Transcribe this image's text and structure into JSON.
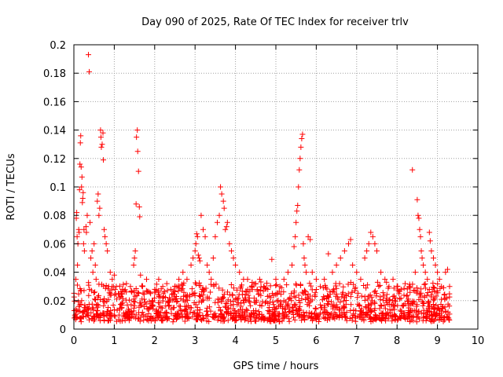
{
  "chart_data": {
    "type": "scatter",
    "title": "Day 090 of 2025, Rate Of TEC Index for receiver trlv",
    "xlabel": "GPS time / hours",
    "ylabel": "ROTI / TECUs",
    "xlim": [
      0,
      10
    ],
    "ylim": [
      0,
      0.2
    ],
    "x_ticks": [
      0,
      1,
      2,
      3,
      4,
      5,
      6,
      7,
      8,
      9,
      10
    ],
    "y_ticks": [
      0,
      0.02,
      0.04,
      0.06,
      0.08,
      0.1,
      0.12,
      0.14,
      0.16,
      0.18,
      0.2
    ],
    "x_tick_labels": [
      "0",
      "1",
      "2",
      "3",
      "4",
      "5",
      "6",
      "7",
      "8",
      "9",
      "10"
    ],
    "y_tick_labels": [
      "0",
      "0.02",
      "0.04",
      "0.06",
      "0.08",
      "0.1",
      "0.12",
      "0.14",
      "0.16",
      "0.18",
      "0.2"
    ],
    "grid": true,
    "marker": "+",
    "color": "#ff0000",
    "series_name": "ROTI",
    "background_band": {
      "x_range": [
        0,
        9.3
      ],
      "y_range": [
        0.005,
        0.03
      ]
    },
    "points": [
      [
        0.05,
        0.035
      ],
      [
        0.06,
        0.078
      ],
      [
        0.07,
        0.082
      ],
      [
        0.08,
        0.065
      ],
      [
        0.09,
        0.045
      ],
      [
        0.1,
        0.06
      ],
      [
        0.12,
        0.07
      ],
      [
        0.13,
        0.068
      ],
      [
        0.14,
        0.098
      ],
      [
        0.15,
        0.116
      ],
      [
        0.16,
        0.131
      ],
      [
        0.17,
        0.136
      ],
      [
        0.18,
        0.114
      ],
      [
        0.19,
        0.1
      ],
      [
        0.2,
        0.107
      ],
      [
        0.21,
        0.089
      ],
      [
        0.22,
        0.092
      ],
      [
        0.23,
        0.096
      ],
      [
        0.24,
        0.06
      ],
      [
        0.25,
        0.07
      ],
      [
        0.26,
        0.055
      ],
      [
        0.3,
        0.072
      ],
      [
        0.31,
        0.068
      ],
      [
        0.33,
        0.08
      ],
      [
        0.36,
        0.193
      ],
      [
        0.38,
        0.181
      ],
      [
        0.4,
        0.075
      ],
      [
        0.42,
        0.05
      ],
      [
        0.45,
        0.055
      ],
      [
        0.47,
        0.04
      ],
      [
        0.5,
        0.06
      ],
      [
        0.53,
        0.045
      ],
      [
        0.55,
        0.035
      ],
      [
        0.58,
        0.09
      ],
      [
        0.6,
        0.095
      ],
      [
        0.62,
        0.08
      ],
      [
        0.64,
        0.085
      ],
      [
        0.66,
        0.14
      ],
      [
        0.67,
        0.135
      ],
      [
        0.68,
        0.128
      ],
      [
        0.7,
        0.13
      ],
      [
        0.72,
        0.138
      ],
      [
        0.73,
        0.119
      ],
      [
        0.75,
        0.07
      ],
      [
        0.77,
        0.065
      ],
      [
        0.8,
        0.06
      ],
      [
        0.83,
        0.055
      ],
      [
        0.86,
        0.03
      ],
      [
        0.9,
        0.04
      ],
      [
        0.95,
        0.035
      ],
      [
        1.0,
        0.038
      ],
      [
        1.05,
        0.03
      ],
      [
        1.1,
        0.025
      ],
      [
        1.2,
        0.028
      ],
      [
        1.3,
        0.032
      ],
      [
        1.4,
        0.03
      ],
      [
        1.48,
        0.045
      ],
      [
        1.5,
        0.05
      ],
      [
        1.52,
        0.055
      ],
      [
        1.54,
        0.088
      ],
      [
        1.55,
        0.135
      ],
      [
        1.57,
        0.14
      ],
      [
        1.58,
        0.125
      ],
      [
        1.6,
        0.111
      ],
      [
        1.62,
        0.086
      ],
      [
        1.63,
        0.079
      ],
      [
        1.65,
        0.038
      ],
      [
        1.7,
        0.03
      ],
      [
        1.8,
        0.035
      ],
      [
        1.9,
        0.025
      ],
      [
        2.0,
        0.028
      ],
      [
        2.1,
        0.035
      ],
      [
        2.2,
        0.03
      ],
      [
        2.3,
        0.032
      ],
      [
        2.4,
        0.028
      ],
      [
        2.5,
        0.03
      ],
      [
        2.6,
        0.035
      ],
      [
        2.7,
        0.04
      ],
      [
        2.8,
        0.035
      ],
      [
        2.9,
        0.045
      ],
      [
        2.95,
        0.05
      ],
      [
        3.0,
        0.055
      ],
      [
        3.02,
        0.06
      ],
      [
        3.04,
        0.067
      ],
      [
        3.06,
        0.065
      ],
      [
        3.08,
        0.052
      ],
      [
        3.1,
        0.05
      ],
      [
        3.12,
        0.048
      ],
      [
        3.15,
        0.08
      ],
      [
        3.2,
        0.07
      ],
      [
        3.25,
        0.065
      ],
      [
        3.3,
        0.045
      ],
      [
        3.35,
        0.04
      ],
      [
        3.4,
        0.035
      ],
      [
        3.45,
        0.05
      ],
      [
        3.5,
        0.065
      ],
      [
        3.55,
        0.075
      ],
      [
        3.6,
        0.08
      ],
      [
        3.63,
        0.1
      ],
      [
        3.66,
        0.095
      ],
      [
        3.7,
        0.09
      ],
      [
        3.72,
        0.085
      ],
      [
        3.75,
        0.07
      ],
      [
        3.78,
        0.072
      ],
      [
        3.8,
        0.075
      ],
      [
        3.85,
        0.06
      ],
      [
        3.9,
        0.055
      ],
      [
        3.95,
        0.05
      ],
      [
        4.0,
        0.045
      ],
      [
        4.1,
        0.04
      ],
      [
        4.2,
        0.035
      ],
      [
        4.3,
        0.035
      ],
      [
        4.4,
        0.03
      ],
      [
        4.5,
        0.032
      ],
      [
        4.6,
        0.035
      ],
      [
        4.7,
        0.03
      ],
      [
        4.8,
        0.028
      ],
      [
        4.9,
        0.049
      ],
      [
        5.0,
        0.035
      ],
      [
        5.1,
        0.03
      ],
      [
        5.2,
        0.035
      ],
      [
        5.3,
        0.04
      ],
      [
        5.4,
        0.045
      ],
      [
        5.45,
        0.058
      ],
      [
        5.48,
        0.065
      ],
      [
        5.5,
        0.075
      ],
      [
        5.52,
        0.083
      ],
      [
        5.54,
        0.087
      ],
      [
        5.56,
        0.1
      ],
      [
        5.58,
        0.112
      ],
      [
        5.6,
        0.12
      ],
      [
        5.62,
        0.128
      ],
      [
        5.64,
        0.134
      ],
      [
        5.66,
        0.137
      ],
      [
        5.68,
        0.06
      ],
      [
        5.7,
        0.05
      ],
      [
        5.72,
        0.045
      ],
      [
        5.75,
        0.04
      ],
      [
        5.8,
        0.065
      ],
      [
        5.85,
        0.063
      ],
      [
        5.9,
        0.04
      ],
      [
        6.0,
        0.035
      ],
      [
        6.1,
        0.03
      ],
      [
        6.2,
        0.035
      ],
      [
        6.3,
        0.053
      ],
      [
        6.4,
        0.04
      ],
      [
        6.5,
        0.045
      ],
      [
        6.6,
        0.05
      ],
      [
        6.7,
        0.055
      ],
      [
        6.8,
        0.06
      ],
      [
        6.85,
        0.063
      ],
      [
        6.9,
        0.045
      ],
      [
        7.0,
        0.04
      ],
      [
        7.1,
        0.035
      ],
      [
        7.2,
        0.05
      ],
      [
        7.25,
        0.055
      ],
      [
        7.3,
        0.06
      ],
      [
        7.35,
        0.068
      ],
      [
        7.4,
        0.065
      ],
      [
        7.45,
        0.06
      ],
      [
        7.5,
        0.055
      ],
      [
        7.6,
        0.04
      ],
      [
        7.7,
        0.035
      ],
      [
        7.8,
        0.03
      ],
      [
        7.9,
        0.035
      ],
      [
        8.0,
        0.03
      ],
      [
        8.1,
        0.028
      ],
      [
        8.2,
        0.032
      ],
      [
        8.3,
        0.03
      ],
      [
        8.38,
        0.112
      ],
      [
        8.45,
        0.04
      ],
      [
        8.5,
        0.091
      ],
      [
        8.52,
        0.08
      ],
      [
        8.54,
        0.078
      ],
      [
        8.56,
        0.07
      ],
      [
        8.58,
        0.065
      ],
      [
        8.6,
        0.055
      ],
      [
        8.62,
        0.05
      ],
      [
        8.65,
        0.045
      ],
      [
        8.7,
        0.04
      ],
      [
        8.75,
        0.035
      ],
      [
        8.8,
        0.068
      ],
      [
        8.82,
        0.062
      ],
      [
        8.85,
        0.055
      ],
      [
        8.9,
        0.05
      ],
      [
        8.95,
        0.045
      ],
      [
        9.0,
        0.04
      ],
      [
        9.05,
        0.035
      ],
      [
        9.1,
        0.03
      ],
      [
        9.2,
        0.04
      ],
      [
        9.25,
        0.042
      ],
      [
        9.3,
        0.03
      ]
    ]
  }
}
